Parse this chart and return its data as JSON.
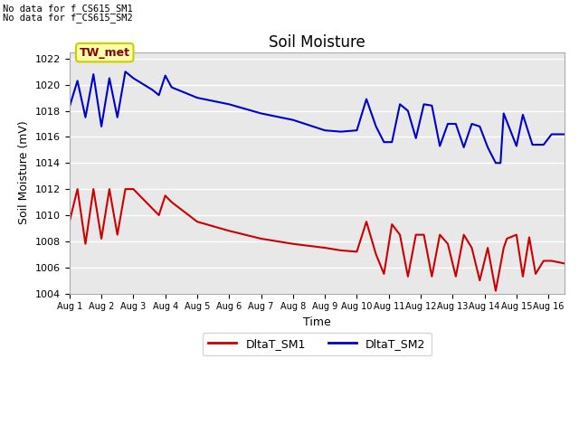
{
  "title": "Soil Moisture",
  "ylabel": "Soil Moisture (mV)",
  "xlabel": "Time",
  "ylim": [
    1004,
    1022.5
  ],
  "xlim": [
    0,
    15.5
  ],
  "annotation_text": "TW_met",
  "no_data_text1": "No data for f_CS615_SM1",
  "no_data_text2": "No data for f_CS615_SM2",
  "sm1_color": "#cc0000",
  "sm2_color": "#0000cc",
  "bg_color": "#e8e8e8",
  "legend_sm1": "DltaT_SM1",
  "legend_sm2": "DltaT_SM2",
  "xtick_labels": [
    "Aug 1",
    "Aug 2",
    "Aug 3",
    "Aug 4",
    "Aug 5",
    "Aug 6",
    "Aug 7",
    "Aug 8",
    "Aug 9",
    "Aug 10",
    "Aug 11",
    "Aug 12",
    "Aug 13",
    "Aug 14",
    "Aug 15",
    "Aug 16"
  ],
  "ytick_values": [
    1004,
    1006,
    1008,
    1010,
    1012,
    1014,
    1016,
    1018,
    1020,
    1022
  ],
  "sm1_x": [
    0.0,
    0.25,
    0.5,
    0.75,
    1.0,
    1.25,
    1.5,
    1.75,
    2.0,
    2.2,
    2.4,
    2.6,
    2.8,
    3.0,
    3.2,
    4.0,
    5.0,
    6.0,
    7.0,
    8.0,
    8.5,
    9.0,
    9.3,
    9.6,
    9.85,
    10.1,
    10.35,
    10.6,
    10.85,
    11.1,
    11.35,
    11.6,
    11.85,
    12.1,
    12.35,
    12.6,
    12.85,
    13.1,
    13.35,
    13.6,
    13.7,
    14.0,
    14.2,
    14.4,
    14.6,
    14.85,
    15.1,
    15.5
  ],
  "sm1_y": [
    1009.5,
    1012.0,
    1007.8,
    1012.0,
    1008.2,
    1012.0,
    1008.5,
    1012.0,
    1012.0,
    1011.5,
    1011.0,
    1010.5,
    1010.0,
    1011.5,
    1011.0,
    1009.5,
    1008.8,
    1008.2,
    1007.8,
    1007.5,
    1007.3,
    1007.2,
    1009.5,
    1007.0,
    1005.5,
    1009.3,
    1008.5,
    1005.3,
    1008.5,
    1008.5,
    1005.3,
    1008.5,
    1007.8,
    1005.3,
    1008.5,
    1007.5,
    1005.0,
    1007.5,
    1004.2,
    1007.5,
    1008.2,
    1008.5,
    1005.3,
    1008.3,
    1005.5,
    1006.5,
    1006.5,
    1006.3
  ],
  "sm2_x": [
    0.0,
    0.25,
    0.5,
    0.75,
    1.0,
    1.25,
    1.5,
    1.75,
    2.0,
    2.2,
    2.4,
    2.6,
    2.8,
    3.0,
    3.2,
    4.0,
    5.0,
    6.0,
    7.0,
    8.0,
    8.5,
    9.0,
    9.3,
    9.6,
    9.85,
    10.1,
    10.35,
    10.6,
    10.85,
    11.1,
    11.35,
    11.6,
    11.85,
    12.1,
    12.35,
    12.6,
    12.85,
    13.1,
    13.35,
    13.5,
    13.6,
    14.0,
    14.2,
    14.5,
    14.85,
    15.1,
    15.5
  ],
  "sm2_y": [
    1018.3,
    1020.3,
    1017.5,
    1020.8,
    1016.8,
    1020.5,
    1017.5,
    1021.0,
    1020.5,
    1020.2,
    1019.9,
    1019.6,
    1019.2,
    1020.7,
    1019.8,
    1019.0,
    1018.5,
    1017.8,
    1017.3,
    1016.5,
    1016.4,
    1016.5,
    1018.9,
    1016.8,
    1015.6,
    1015.6,
    1018.5,
    1018.0,
    1015.9,
    1018.5,
    1018.4,
    1015.3,
    1017.0,
    1017.0,
    1015.2,
    1017.0,
    1016.8,
    1015.2,
    1014.0,
    1014.0,
    1017.8,
    1015.3,
    1017.7,
    1015.4,
    1015.4,
    1016.2,
    1016.2
  ]
}
